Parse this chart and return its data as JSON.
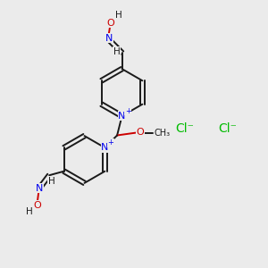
{
  "bg_color": "#ebebeb",
  "black": "#1a1a1a",
  "blue": "#0000ee",
  "red": "#cc0000",
  "green": "#00bb00",
  "lw": 1.4,
  "figsize": [
    3.0,
    3.0
  ],
  "dpi": 100,
  "xlim": [
    0,
    10
  ],
  "ylim": [
    0,
    10
  ]
}
